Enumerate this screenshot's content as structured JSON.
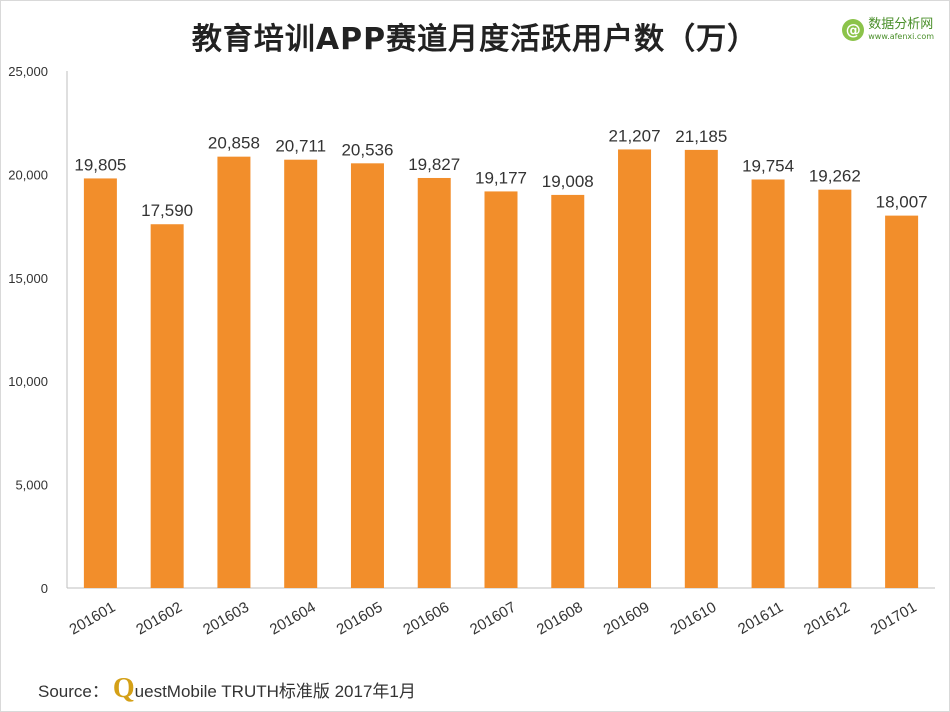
{
  "title": "教育培训APP赛道月度活跃用户数（万）",
  "logo": {
    "cn": "数据分析网",
    "en": "www.afenxi.com",
    "mark": "@",
    "icon": "afenxi-logo-icon"
  },
  "source": {
    "label": "Source：",
    "q": "Q",
    "rest": "uestMobile TRUTH标准版 2017年1月"
  },
  "colors": {
    "bar": "#f28e2b",
    "axis": "#bfbfbf",
    "text": "#333333"
  },
  "chart_data": {
    "type": "bar",
    "title": "教育培训APP赛道月度活跃用户数（万）",
    "xlabel": "",
    "ylabel": "",
    "categories": [
      "201601",
      "201602",
      "201603",
      "201604",
      "201605",
      "201606",
      "201607",
      "201608",
      "201609",
      "201610",
      "201611",
      "201612",
      "201701"
    ],
    "values": [
      19805,
      17590,
      20858,
      20711,
      20536,
      19827,
      19177,
      19008,
      21207,
      21185,
      19754,
      19262,
      18007
    ],
    "value_labels": [
      "19,805",
      "17,590",
      "20,858",
      "20,711",
      "20,536",
      "19,827",
      "19,177",
      "19,008",
      "21,207",
      "21,185",
      "19,754",
      "19,262",
      "18,007"
    ],
    "ylim": [
      0,
      25000
    ],
    "yticks": [
      0,
      5000,
      10000,
      15000,
      20000,
      25000
    ],
    "ytick_labels": [
      "0",
      "5,000",
      "10,000",
      "15,000",
      "20,000",
      "25,000"
    ],
    "grid": false,
    "legend": "none"
  }
}
